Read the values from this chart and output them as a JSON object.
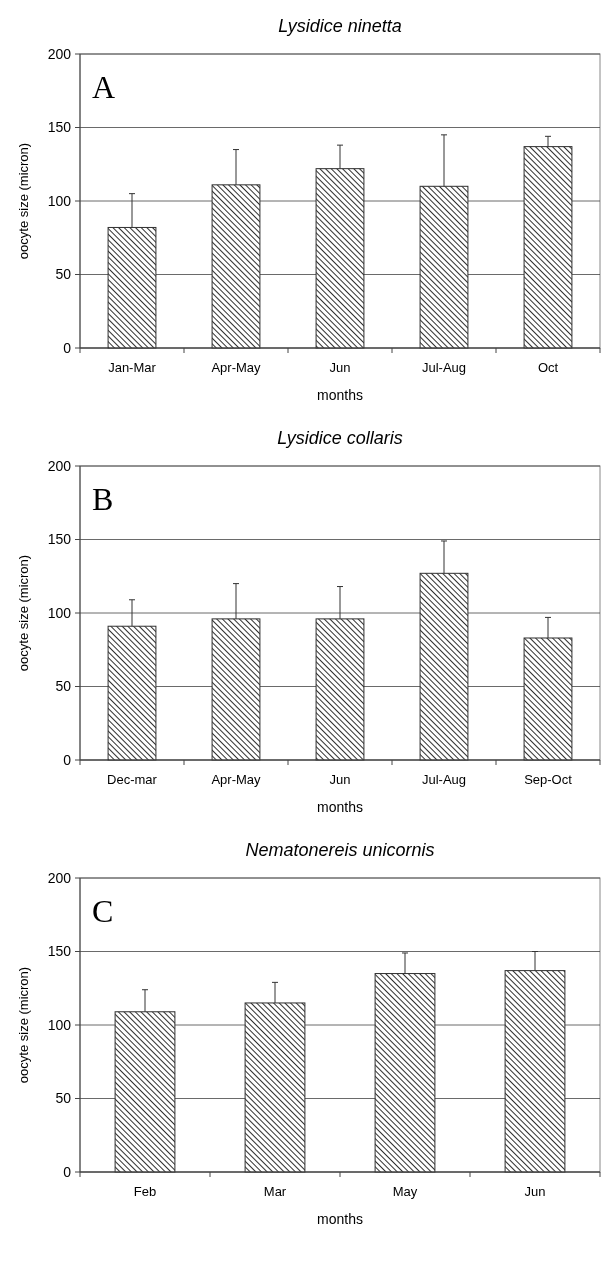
{
  "chart_data": [
    {
      "type": "bar",
      "title": "Lysidice ninetta",
      "xlabel": "months",
      "ylabel": "oocyte size (micron)",
      "annotations": [
        "A"
      ],
      "categories": [
        "Jan-Mar",
        "Apr-May",
        "Jun",
        "Jul-Aug",
        "Oct"
      ],
      "values": [
        82,
        111,
        122,
        110,
        137
      ],
      "errors": [
        [
          82,
          105
        ],
        [
          111,
          135
        ],
        [
          122,
          138
        ],
        [
          110,
          145
        ],
        [
          137,
          144
        ]
      ],
      "color": "#303030",
      "ylim": [
        0,
        200
      ],
      "yticks": [
        0,
        50,
        100,
        150,
        200
      ],
      "grid": "y"
    },
    {
      "type": "bar",
      "title": "Lysidice collaris",
      "xlabel": "months",
      "ylabel": "oocyte size (micron)",
      "annotations": [
        "B"
      ],
      "categories": [
        "Dec-mar",
        "Apr-May",
        "Jun",
        "Jul-Aug",
        "Sep-Oct"
      ],
      "values": [
        91,
        96,
        96,
        127,
        83
      ],
      "errors": [
        [
          91,
          109
        ],
        [
          96,
          120
        ],
        [
          96,
          118
        ],
        [
          127,
          149
        ],
        [
          83,
          97
        ]
      ],
      "color": "#303030",
      "ylim": [
        0,
        200
      ],
      "yticks": [
        0,
        50,
        100,
        150,
        200
      ],
      "grid": "y"
    },
    {
      "type": "bar",
      "title": "Nematonereis unicornis",
      "xlabel": "months",
      "ylabel": "oocyte size (micron)",
      "annotations": [
        "C"
      ],
      "categories": [
        "Feb",
        "Mar",
        "May",
        "Jun"
      ],
      "values": [
        109,
        115,
        135,
        137
      ],
      "errors": [
        [
          109,
          124
        ],
        [
          115,
          129
        ],
        [
          135,
          149
        ],
        [
          137,
          150
        ]
      ],
      "color": "#303030",
      "ylim": [
        0,
        200
      ],
      "yticks": [
        0,
        50,
        100,
        150,
        200
      ],
      "grid": "y"
    }
  ]
}
